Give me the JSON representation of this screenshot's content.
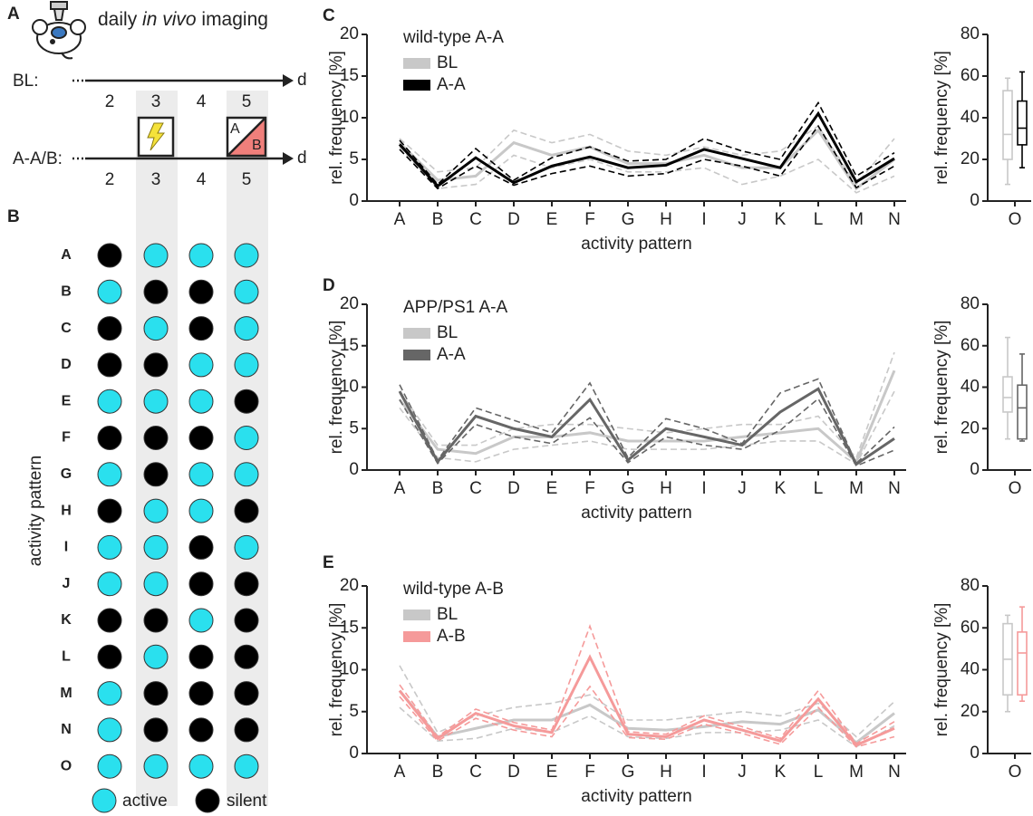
{
  "panel_a": {
    "label": "A",
    "title_parts": [
      "daily ",
      "in vivo",
      " imaging"
    ],
    "timeline_1": "BL:",
    "timeline_2": "A-A/B:",
    "days": [
      "2",
      "3",
      "4",
      "5"
    ],
    "unit": "d",
    "context_a": "A",
    "context_b": "B"
  },
  "panel_b": {
    "label": "B",
    "ylabel": "activity pattern",
    "rows": [
      "A",
      "B",
      "C",
      "D",
      "E",
      "F",
      "G",
      "H",
      "I",
      "J",
      "K",
      "L",
      "M",
      "N",
      "O"
    ],
    "states": [
      [
        0,
        1,
        1,
        1
      ],
      [
        1,
        0,
        0,
        1
      ],
      [
        0,
        1,
        0,
        1
      ],
      [
        0,
        0,
        1,
        1
      ],
      [
        1,
        1,
        1,
        0
      ],
      [
        0,
        0,
        0,
        1
      ],
      [
        1,
        0,
        1,
        1
      ],
      [
        0,
        1,
        1,
        0
      ],
      [
        1,
        1,
        0,
        1
      ],
      [
        1,
        1,
        0,
        0
      ],
      [
        0,
        0,
        1,
        0
      ],
      [
        0,
        1,
        0,
        0
      ],
      [
        1,
        0,
        0,
        0
      ],
      [
        1,
        0,
        0,
        0
      ],
      [
        1,
        1,
        1,
        1
      ]
    ],
    "active_color": "#2ae0ee",
    "silent_color": "#000000",
    "legend": [
      "active",
      "silent"
    ]
  },
  "chart_data": [
    {
      "type": "line",
      "panel": "C",
      "title": "wild-type A-A",
      "xlabel": "activity pattern",
      "ylabel": "rel. frequency [%]",
      "categories": [
        "A",
        "B",
        "C",
        "D",
        "E",
        "F",
        "G",
        "H",
        "I",
        "J",
        "K",
        "L",
        "M",
        "N"
      ],
      "ylim": [
        0,
        20
      ],
      "yticks": [
        0,
        5,
        10,
        15,
        20
      ],
      "series": [
        {
          "name": "BL",
          "color": "#c8c8c8",
          "values": [
            7,
            2.5,
            3,
            7,
            5.5,
            6.5,
            4.5,
            4.5,
            5.5,
            4,
            4,
            8.5,
            1.5,
            5
          ],
          "upper": [
            7.5,
            3.5,
            4,
            8.5,
            7,
            8,
            6,
            5.5,
            6.5,
            5.5,
            6,
            9,
            2,
            7.5
          ],
          "lower": [
            6.5,
            1.5,
            2,
            5.5,
            4,
            5,
            3.5,
            3.5,
            4,
            2,
            3,
            5,
            1,
            3
          ],
          "box": {
            "min": 8,
            "q1": 20,
            "median": 32,
            "q3": 53,
            "max": 59
          }
        },
        {
          "name": "A-A",
          "color": "#000000",
          "values": [
            6.8,
            1.8,
            5.2,
            2.2,
            4.2,
            5.3,
            4,
            4.3,
            6.2,
            5.1,
            4,
            10.5,
            2.3,
            5.1
          ],
          "upper": [
            7.3,
            2,
            6.3,
            2.5,
            5.2,
            6.5,
            4.8,
            5,
            7.5,
            6,
            5,
            11.8,
            3,
            5.8
          ],
          "lower": [
            6.2,
            1.5,
            4.2,
            1.9,
            3.3,
            4.2,
            3,
            3.3,
            5,
            4.2,
            3,
            9,
            1.6,
            4.2
          ],
          "box": {
            "min": 16,
            "q1": 27,
            "median": 35,
            "q3": 48,
            "max": 62
          }
        }
      ],
      "box_categories": [
        "O"
      ],
      "box_ylabel": "rel. frequency [%]",
      "box_ylim": [
        0,
        80
      ],
      "box_yticks": [
        0,
        20,
        40,
        60,
        80
      ]
    },
    {
      "type": "line",
      "panel": "D",
      "title": "APP/PS1 A-A",
      "xlabel": "activity pattern",
      "ylabel": "rel. frequency [%]",
      "categories": [
        "A",
        "B",
        "C",
        "D",
        "E",
        "F",
        "G",
        "H",
        "I",
        "J",
        "K",
        "L",
        "M",
        "N"
      ],
      "ylim": [
        0,
        20
      ],
      "yticks": [
        0,
        5,
        10,
        15,
        20
      ],
      "series": [
        {
          "name": "BL",
          "color": "#c8c8c8",
          "values": [
            8.5,
            2.5,
            2,
            4,
            4,
            4.5,
            3.5,
            3.5,
            3.5,
            4,
            4.5,
            5,
            1,
            12
          ],
          "upper": [
            9.5,
            3,
            3,
            5,
            5.5,
            5.5,
            5,
            4.5,
            5,
            5.5,
            5.5,
            6.5,
            1.5,
            14.2
          ],
          "lower": [
            7.5,
            1.5,
            1,
            2.5,
            3,
            3.5,
            2.5,
            2.5,
            2.5,
            3,
            3.5,
            3.5,
            0.7,
            9.5
          ],
          "box": {
            "min": 15,
            "q1": 28,
            "median": 35,
            "q3": 45,
            "max": 64
          }
        },
        {
          "name": "A-A",
          "color": "#666666",
          "values": [
            9.5,
            1,
            6.5,
            5,
            4,
            8.5,
            1.2,
            5,
            4,
            3,
            7,
            9.8,
            0.7,
            3.8
          ],
          "upper": [
            10.3,
            1.2,
            7.5,
            6,
            4.5,
            10.5,
            1.5,
            6.2,
            5,
            3.2,
            9.3,
            11,
            0.8,
            5.2
          ],
          "lower": [
            8.5,
            0.8,
            5.5,
            4,
            3.2,
            6.3,
            0.9,
            4,
            3,
            2.5,
            4.8,
            8.6,
            0.5,
            2.4
          ],
          "box": {
            "min": 14,
            "q1": 15,
            "median": 30,
            "q3": 41,
            "max": 56
          }
        }
      ],
      "box_categories": [
        "O"
      ],
      "box_ylabel": "rel. frequency [%]",
      "box_ylim": [
        0,
        80
      ],
      "box_yticks": [
        0,
        20,
        40,
        60,
        80
      ]
    },
    {
      "type": "line",
      "panel": "E",
      "title": "wild-type A-B",
      "xlabel": "activity pattern",
      "ylabel": "rel. frequency [%]",
      "categories": [
        "A",
        "B",
        "C",
        "D",
        "E",
        "F",
        "G",
        "H",
        "I",
        "J",
        "K",
        "L",
        "M",
        "N"
      ],
      "ylim": [
        0,
        20
      ],
      "yticks": [
        0,
        5,
        10,
        15,
        20
      ],
      "series": [
        {
          "name": "BL",
          "color": "#c8c8c8",
          "values": [
            7.5,
            2,
            3,
            4,
            4,
            5.8,
            3,
            2.8,
            3.2,
            3.8,
            3.5,
            5.2,
            1.3,
            4.8
          ],
          "upper": [
            10.5,
            2.5,
            4.5,
            5.5,
            6,
            7,
            4,
            4,
            4.5,
            5,
            4.5,
            6,
            2,
            6.2
          ],
          "lower": [
            5.5,
            1.5,
            1.8,
            3,
            2.5,
            4.5,
            2,
            1.8,
            2.5,
            2.5,
            2.8,
            4,
            0.8,
            3.3
          ],
          "box": {
            "min": 20,
            "q1": 28,
            "median": 45,
            "q3": 62,
            "max": 66
          }
        },
        {
          "name": "A-B",
          "color": "#f59a9a",
          "values": [
            7.5,
            1.8,
            4.8,
            3.3,
            2.5,
            11.5,
            2.3,
            2,
            4,
            2.8,
            1.5,
            6.5,
            1,
            3
          ],
          "upper": [
            8.2,
            2,
            5.3,
            3.7,
            2.8,
            15.2,
            2.6,
            2.3,
            4.5,
            3.2,
            1.8,
            7.5,
            1.2,
            3.8
          ],
          "lower": [
            6.8,
            1.5,
            4.2,
            2.8,
            2,
            8,
            1.9,
            1.7,
            3.5,
            2.4,
            1.1,
            5.5,
            0.8,
            2
          ],
          "box": {
            "min": 25,
            "q1": 28,
            "median": 48,
            "q3": 58,
            "max": 70
          }
        }
      ],
      "box_categories": [
        "O"
      ],
      "box_ylabel": "rel. frequency [%]",
      "box_ylim": [
        0,
        80
      ],
      "box_yticks": [
        0,
        20,
        40,
        60,
        80
      ]
    }
  ]
}
